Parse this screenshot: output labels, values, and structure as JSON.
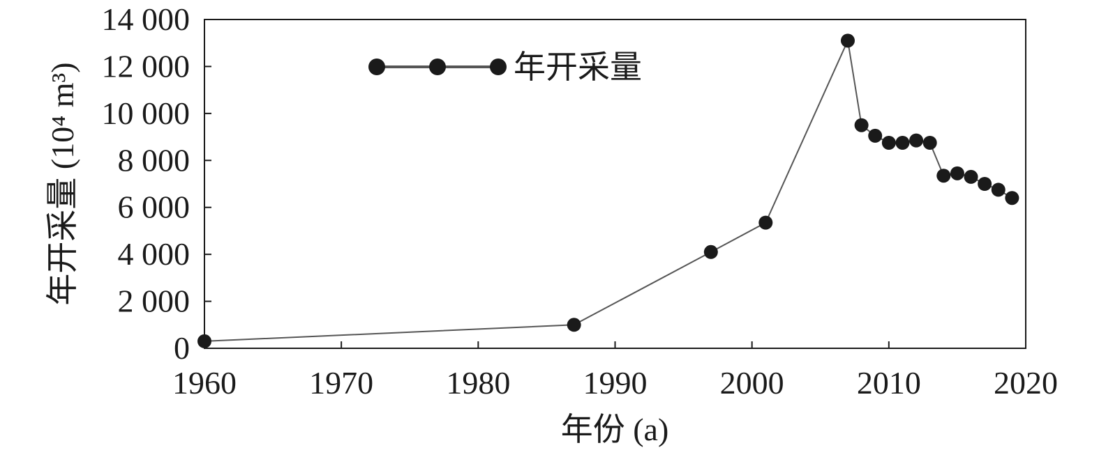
{
  "chart_data": {
    "type": "line",
    "xlabel": "年份 (a)",
    "ylabel": "年开采量 (10⁴ m³)",
    "xlim": [
      1960,
      2020
    ],
    "ylim": [
      0,
      14000
    ],
    "xticks": [
      1960,
      1970,
      1980,
      1990,
      2000,
      2010,
      2020
    ],
    "xtick_labels": [
      "1960",
      "1970",
      "1980",
      "1990",
      "2000",
      "2010",
      "2020"
    ],
    "yticks": [
      0,
      2000,
      4000,
      6000,
      8000,
      10000,
      12000,
      14000
    ],
    "ytick_labels": [
      "0",
      "2 000",
      "4 000",
      "6 000",
      "8 000",
      "10 000",
      "12 000",
      "14 000"
    ],
    "grid": false,
    "legend_position": "top-left",
    "series": [
      {
        "name": "年开采量",
        "color": "#1a1a1a",
        "x": [
          1960,
          1987,
          1997,
          2001,
          2007,
          2008,
          2009,
          2010,
          2011,
          2012,
          2013,
          2014,
          2015,
          2016,
          2017,
          2018,
          2019
        ],
        "y": [
          300,
          1000,
          4100,
          5350,
          13100,
          9500,
          9050,
          8750,
          8750,
          8850,
          8750,
          7350,
          7450,
          7300,
          7000,
          6750,
          6400
        ]
      }
    ]
  }
}
